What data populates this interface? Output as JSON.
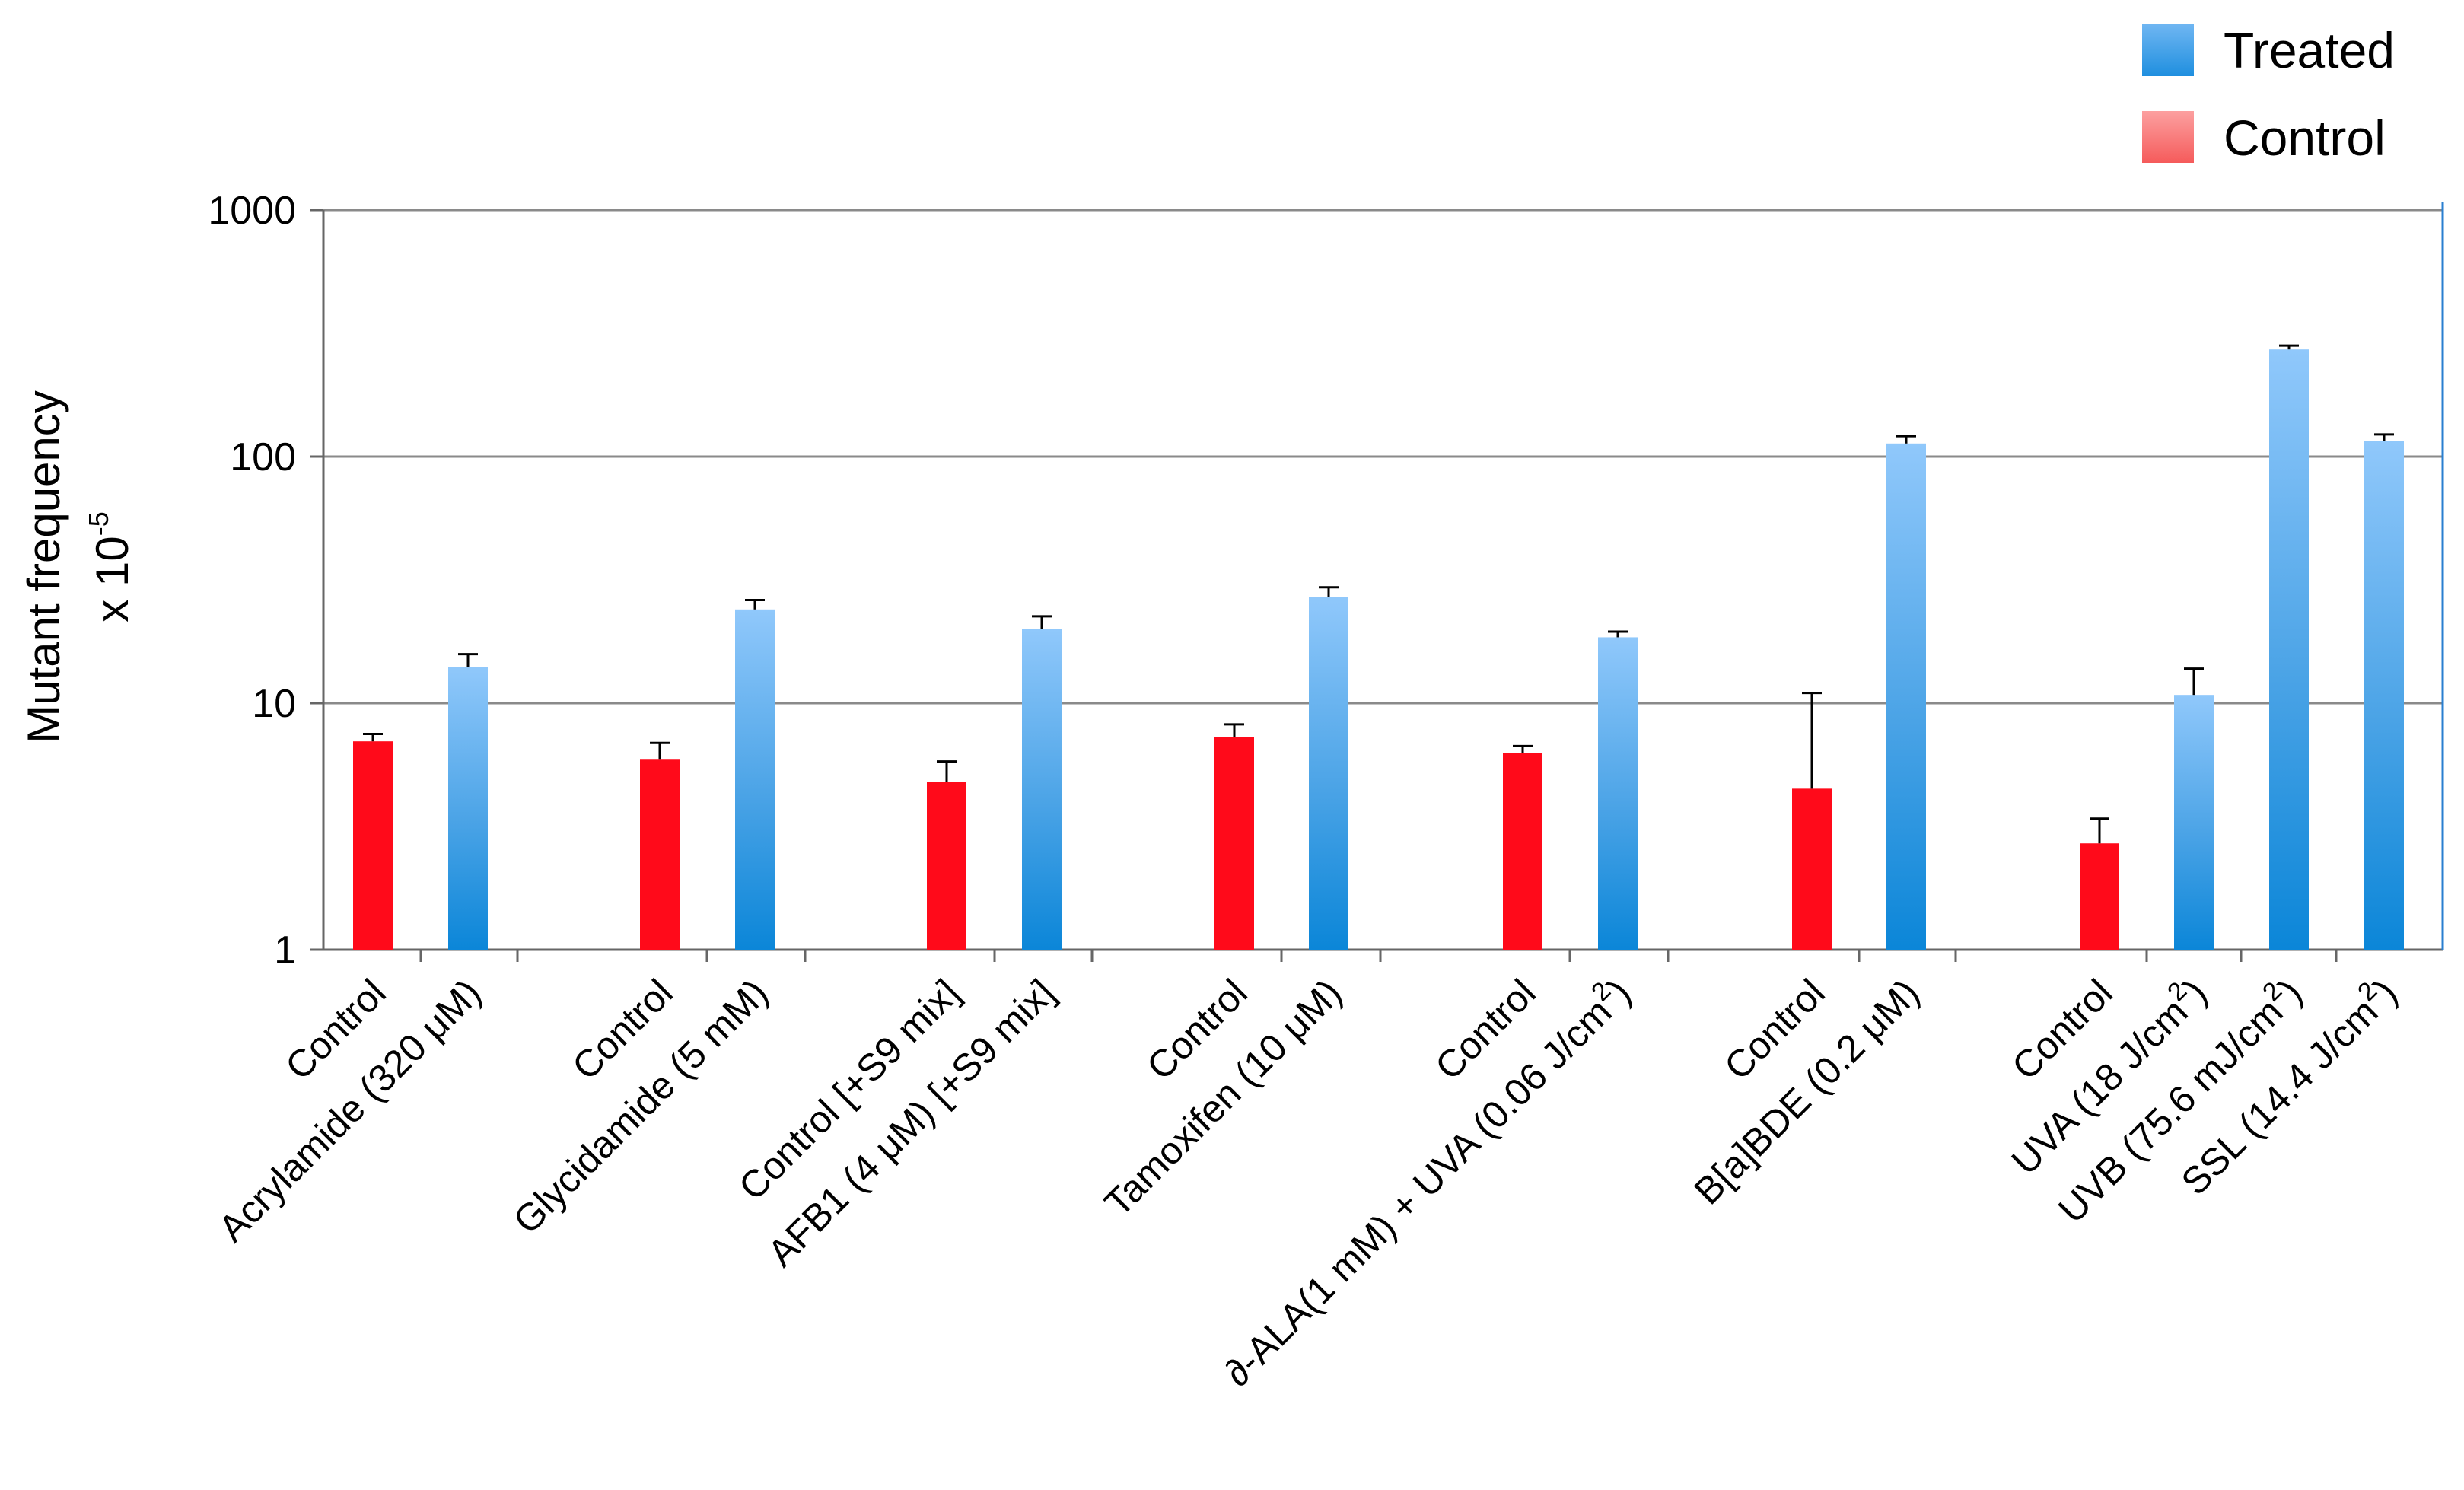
{
  "chart_data": {
    "type": "bar",
    "y_scale": "log",
    "ylim": [
      1,
      1000
    ],
    "y_ticks": [
      "1",
      "10",
      "100",
      "1000"
    ],
    "y_tick_values": [
      1,
      10,
      100,
      1000
    ],
    "ylabel_line1": "Mutant frequency",
    "ylabel_line2": "x 10",
    "ylabel_exp": "-5",
    "grid": true,
    "legend_position": "top-right",
    "legend": [
      {
        "name": "Treated",
        "color": "#4aa3e6"
      },
      {
        "name": "Control",
        "color": "#f97a7a"
      }
    ],
    "colors": {
      "control": "#ff0a1a",
      "treated_top": "#90c8fb",
      "treated_bottom": "#0b86d8"
    },
    "groups": [
      {
        "bars": [
          {
            "label": "Control",
            "sup": "",
            "tail": "",
            "type": "control",
            "value": 7.0,
            "error": 0.5
          },
          {
            "label": "Acrylamide (320 μM)",
            "sup": "",
            "tail": "",
            "type": "treated",
            "value": 14.0,
            "error": 1.8
          }
        ]
      },
      {
        "bars": [
          {
            "label": "Control",
            "sup": "",
            "tail": "",
            "type": "control",
            "value": 5.9,
            "error": 1.0
          },
          {
            "label": "Glycidamide (5 mM)",
            "sup": "",
            "tail": "",
            "type": "treated",
            "value": 24.0,
            "error": 2.2
          }
        ]
      },
      {
        "bars": [
          {
            "label": "Control [+S9 mix]",
            "sup": "",
            "tail": "",
            "type": "control",
            "value": 4.8,
            "error": 1.0
          },
          {
            "label": "AFB1 (4 μM) [+S9 mix]",
            "sup": "",
            "tail": "",
            "type": "treated",
            "value": 20.0,
            "error": 2.5
          }
        ]
      },
      {
        "bars": [
          {
            "label": "Control",
            "sup": "",
            "tail": "",
            "type": "control",
            "value": 7.3,
            "error": 0.9
          },
          {
            "label": "Tamoxifen (10 μM)",
            "sup": "",
            "tail": "",
            "type": "treated",
            "value": 27.0,
            "error": 2.5
          }
        ]
      },
      {
        "bars": [
          {
            "label": "Control",
            "sup": "",
            "tail": "",
            "type": "control",
            "value": 6.3,
            "error": 0.4
          },
          {
            "label": "∂-ALA(1 mM) + UVA (0.06 J/cm",
            "sup": "2",
            "tail": ")",
            "type": "treated",
            "value": 18.5,
            "error": 1.0
          }
        ]
      },
      {
        "bars": [
          {
            "label": "Control",
            "sup": "",
            "tail": "",
            "type": "control",
            "value": 4.5,
            "error": 6.5
          },
          {
            "label": "B[a]BDE (0.2 μM)",
            "sup": "",
            "tail": "",
            "type": "treated",
            "value": 113.0,
            "error": 8.0
          }
        ]
      },
      {
        "bars": [
          {
            "label": "Control",
            "sup": "",
            "tail": "",
            "type": "control",
            "value": 2.7,
            "error": 0.7
          },
          {
            "label": "UVA (18 J/cm",
            "sup": "2",
            "tail": ")",
            "type": "treated",
            "value": 10.8,
            "error": 3.0
          },
          {
            "label": "UVB (75.6 mJ/cm",
            "sup": "2",
            "tail": ")",
            "type": "treated",
            "value": 272.0,
            "error": 10.0
          },
          {
            "label": "SSL (14.4 J/cm",
            "sup": "2",
            "tail": ")",
            "type": "treated",
            "value": 116.0,
            "error": 7.0
          }
        ]
      }
    ]
  }
}
